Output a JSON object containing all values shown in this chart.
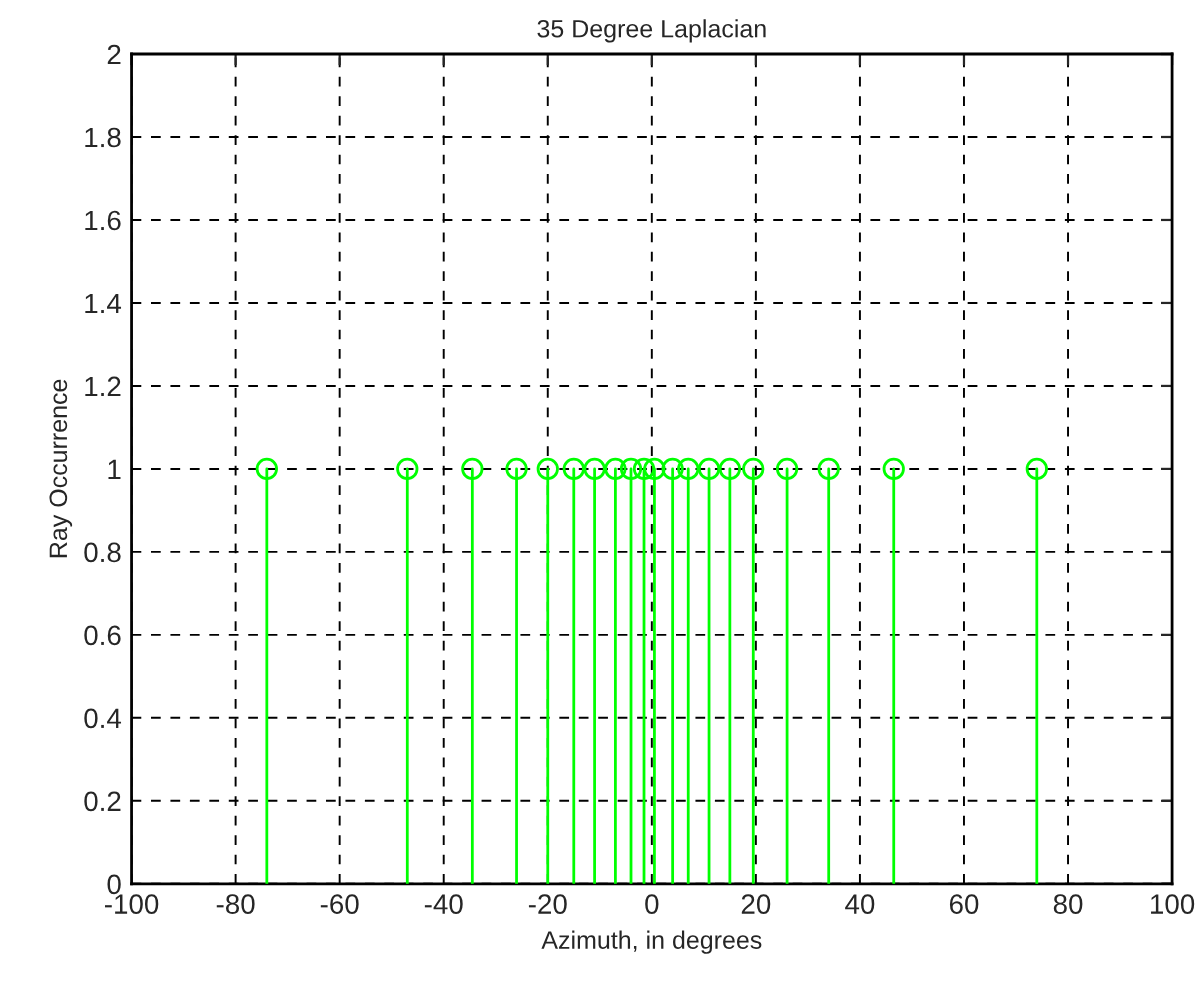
{
  "chart_data": {
    "type": "lollipop",
    "title": "35 Degree Laplacian",
    "xlabel": "Azimuth, in degrees",
    "ylabel": "Ray Occurrence",
    "x": [
      -74,
      -47,
      -34.5,
      -26,
      -20,
      -15,
      -11,
      -7,
      -4,
      -1.5,
      0.5,
      4,
      7,
      11,
      15,
      19.5,
      26,
      34,
      46.5,
      74
    ],
    "series": [
      {
        "color": "#00ff00",
        "values": [
          1,
          1,
          1,
          1,
          1,
          1,
          1,
          1,
          1,
          1,
          1,
          1,
          1,
          1,
          1,
          1,
          1,
          1,
          1,
          1
        ]
      }
    ],
    "marker": "circle",
    "grid": true,
    "xlim": [
      -100,
      100
    ],
    "xticks": [
      -100,
      -80,
      -60,
      -40,
      -20,
      0,
      20,
      40,
      60,
      80,
      100
    ],
    "ylim": [
      0,
      2
    ],
    "yticks": [
      0,
      0.2,
      0.4,
      0.6,
      0.8,
      1,
      1.2,
      1.4,
      1.6,
      1.8,
      2
    ]
  }
}
